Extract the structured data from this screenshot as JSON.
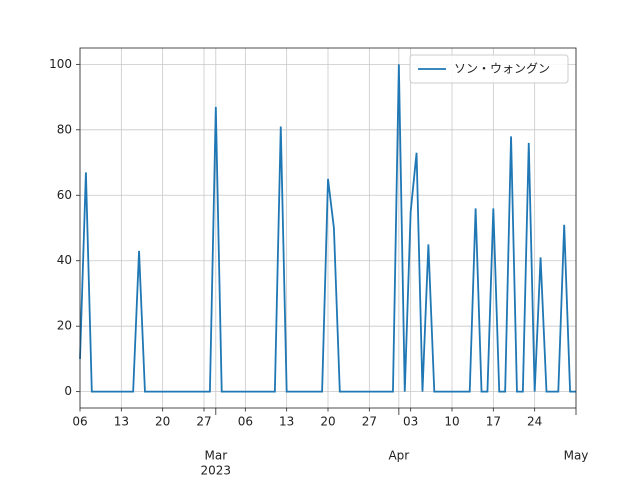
{
  "chart_data": {
    "type": "line",
    "x": [
      "2023-02-06",
      "2023-02-07",
      "2023-02-08",
      "2023-02-09",
      "2023-02-10",
      "2023-02-11",
      "2023-02-12",
      "2023-02-13",
      "2023-02-14",
      "2023-02-15",
      "2023-02-16",
      "2023-02-17",
      "2023-02-18",
      "2023-02-19",
      "2023-02-20",
      "2023-02-21",
      "2023-02-22",
      "2023-02-23",
      "2023-02-24",
      "2023-02-25",
      "2023-02-26",
      "2023-02-27",
      "2023-02-28",
      "2023-03-01",
      "2023-03-02",
      "2023-03-03",
      "2023-03-04",
      "2023-03-05",
      "2023-03-06",
      "2023-03-07",
      "2023-03-08",
      "2023-03-09",
      "2023-03-10",
      "2023-03-11",
      "2023-03-12",
      "2023-03-13",
      "2023-03-14",
      "2023-03-15",
      "2023-03-16",
      "2023-03-17",
      "2023-03-18",
      "2023-03-19",
      "2023-03-20",
      "2023-03-21",
      "2023-03-22",
      "2023-03-23",
      "2023-03-24",
      "2023-03-25",
      "2023-03-26",
      "2023-03-27",
      "2023-03-28",
      "2023-03-29",
      "2023-03-30",
      "2023-03-31",
      "2023-04-01",
      "2023-04-02",
      "2023-04-03",
      "2023-04-04",
      "2023-04-05",
      "2023-04-06",
      "2023-04-07",
      "2023-04-08",
      "2023-04-09",
      "2023-04-10",
      "2023-04-11",
      "2023-04-12",
      "2023-04-13",
      "2023-04-14",
      "2023-04-15",
      "2023-04-16",
      "2023-04-17",
      "2023-04-18",
      "2023-04-19",
      "2023-04-20",
      "2023-04-21",
      "2023-04-22",
      "2023-04-23",
      "2023-04-24",
      "2023-04-25",
      "2023-04-26",
      "2023-04-27",
      "2023-04-28",
      "2023-04-29",
      "2023-04-30",
      "2023-05-01"
    ],
    "series": [
      {
        "name": "ソン・ウォングン",
        "color": "#1f77b4",
        "values": [
          10,
          67,
          0,
          0,
          0,
          0,
          0,
          0,
          0,
          0,
          43,
          0,
          0,
          0,
          0,
          0,
          0,
          0,
          0,
          0,
          0,
          0,
          0,
          87,
          0,
          0,
          0,
          0,
          0,
          0,
          0,
          0,
          0,
          0,
          81,
          0,
          0,
          0,
          0,
          0,
          0,
          0,
          65,
          50,
          0,
          0,
          0,
          0,
          0,
          0,
          0,
          0,
          0,
          0,
          100,
          0,
          55,
          73,
          0,
          45,
          0,
          0,
          0,
          0,
          0,
          0,
          0,
          56,
          0,
          0,
          56,
          0,
          0,
          78,
          0,
          0,
          76,
          0,
          41,
          0,
          0,
          0,
          51,
          0,
          0
        ]
      }
    ],
    "xlim": [
      "2023-02-06",
      "2023-05-01"
    ],
    "xticks": [
      {
        "value": "2023-02-06",
        "label": "06"
      },
      {
        "value": "2023-02-13",
        "label": "13"
      },
      {
        "value": "2023-02-20",
        "label": "20"
      },
      {
        "value": "2023-02-27",
        "label": "27"
      },
      {
        "value": "2023-03-01",
        "label": "Mar"
      },
      {
        "value": "2023-03-06",
        "label": "06"
      },
      {
        "value": "2023-03-13",
        "label": "13"
      },
      {
        "value": "2023-03-20",
        "label": "20"
      },
      {
        "value": "2023-03-27",
        "label": "27"
      },
      {
        "value": "2023-04-01",
        "label": "Apr"
      },
      {
        "value": "2023-04-03",
        "label": "03"
      },
      {
        "value": "2023-04-10",
        "label": "10"
      },
      {
        "value": "2023-04-17",
        "label": "17"
      },
      {
        "value": "2023-04-24",
        "label": "24"
      },
      {
        "value": "2023-05-01",
        "label": "May"
      }
    ],
    "x_year_label": "2023",
    "ylim": [
      -5,
      105
    ],
    "yticks": [
      0,
      20,
      40,
      60,
      80,
      100
    ],
    "grid": true,
    "legend": "upper right"
  }
}
